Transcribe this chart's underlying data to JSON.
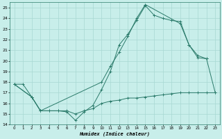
{
  "xlabel": "Humidex (Indice chaleur)",
  "xlim": [
    -0.5,
    23.5
  ],
  "ylim": [
    14,
    25.5
  ],
  "yticks": [
    14,
    15,
    16,
    17,
    18,
    19,
    20,
    21,
    22,
    23,
    24,
    25
  ],
  "xticks": [
    0,
    1,
    2,
    3,
    4,
    5,
    6,
    7,
    8,
    9,
    10,
    11,
    12,
    13,
    14,
    15,
    16,
    17,
    18,
    19,
    20,
    21,
    22,
    23
  ],
  "bg_color": "#c8eeea",
  "line_color": "#2a7a6a",
  "grid_color": "#a8d8d2",
  "line1_x": [
    0,
    1,
    2,
    3,
    4,
    5,
    6,
    7,
    8,
    9,
    10,
    11,
    12,
    13,
    14,
    15,
    16,
    17,
    18,
    19,
    20,
    21,
    22,
    23
  ],
  "line1_y": [
    17.8,
    17.8,
    16.6,
    15.3,
    15.3,
    15.3,
    15.3,
    15.0,
    15.3,
    15.5,
    16.0,
    16.2,
    16.3,
    16.5,
    16.5,
    16.6,
    16.7,
    16.8,
    16.9,
    17.0,
    17.0,
    17.0,
    17.0,
    17.0
  ],
  "line2_x": [
    0,
    2,
    3,
    4,
    5,
    6,
    7,
    8,
    9,
    10,
    11,
    12,
    13,
    14,
    15,
    16,
    17,
    18,
    19,
    20,
    21,
    22
  ],
  "line2_y": [
    17.8,
    16.6,
    15.3,
    15.3,
    15.3,
    15.2,
    14.4,
    15.2,
    15.8,
    17.3,
    19.0,
    21.5,
    22.5,
    23.8,
    25.2,
    24.3,
    24.0,
    23.8,
    23.7,
    21.5,
    20.5,
    20.2
  ],
  "line3_x": [
    0,
    2,
    3,
    10,
    11,
    12,
    13,
    14,
    15,
    19,
    20,
    21,
    22,
    23
  ],
  "line3_y": [
    17.8,
    16.6,
    15.3,
    18.0,
    19.5,
    20.8,
    22.3,
    24.0,
    25.3,
    23.5,
    21.5,
    20.3,
    20.2,
    17.0
  ]
}
